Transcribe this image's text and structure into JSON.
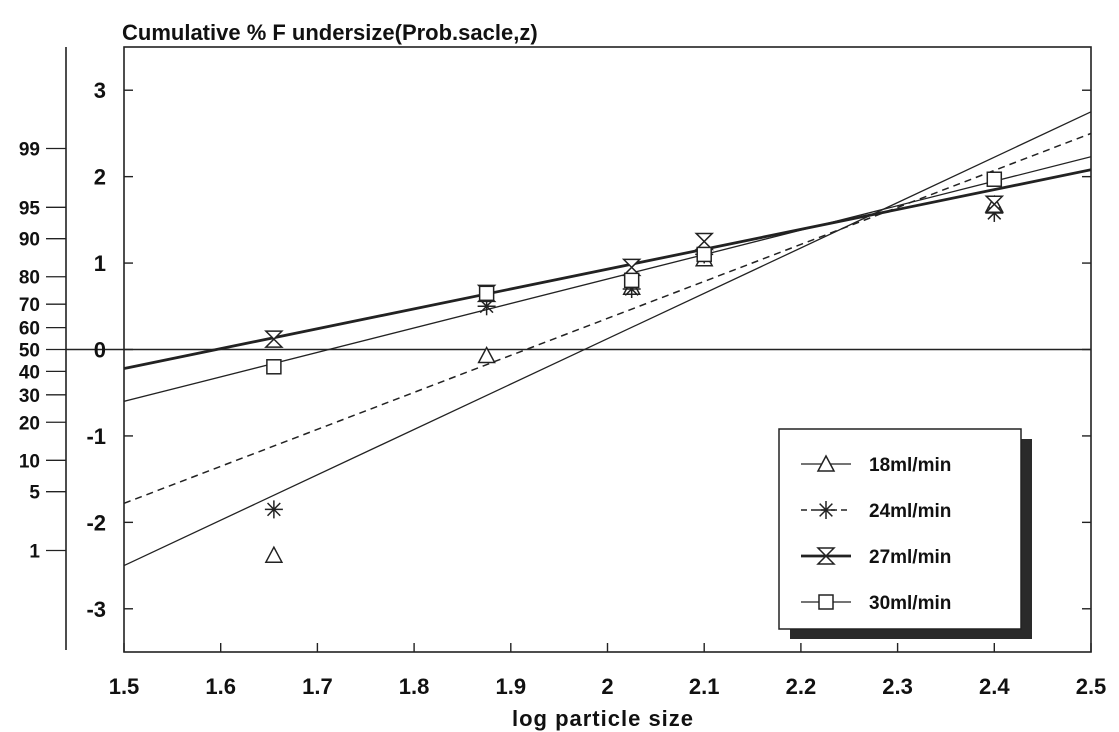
{
  "chart_data": {
    "type": "scatter",
    "title": "Cumulative % F undersize(Prob.sacle,z)",
    "xlabel": "log particle size",
    "ylabel": "",
    "xlim": [
      1.5,
      2.5
    ],
    "ylim": [
      -3.5,
      3.5
    ],
    "x_ticks": [
      "1.5",
      "1.6",
      "1.7",
      "1.8",
      "1.9",
      "2",
      "2.1",
      "2.2",
      "2.3",
      "2.4",
      "2.5"
    ],
    "x_tick_values": [
      1.5,
      1.6,
      1.7,
      1.8,
      1.9,
      2.0,
      2.1,
      2.2,
      2.3,
      2.4,
      2.5
    ],
    "y_ticks": [
      "-3",
      "-2",
      "-1",
      "0",
      "1",
      "2",
      "3"
    ],
    "y_tick_values": [
      -3,
      -2,
      -1,
      0,
      1,
      2,
      3
    ],
    "percent_axis": {
      "labels": [
        "1",
        "5",
        "10",
        "20",
        "30",
        "40",
        "50",
        "60",
        "70",
        "80",
        "90",
        "95",
        "99"
      ],
      "z_values": [
        -2.326,
        -1.645,
        -1.282,
        -0.842,
        -0.524,
        -0.253,
        0.0,
        0.253,
        0.524,
        0.842,
        1.282,
        1.645,
        2.326
      ]
    },
    "grid": false,
    "reference_line_y": 0,
    "legend_position": "bottom-right",
    "series": [
      {
        "name": "18ml/min",
        "marker": "triangle",
        "line_style": "solid-thin",
        "points": [
          [
            1.655,
            -2.38
          ],
          [
            1.875,
            -0.07
          ],
          [
            2.025,
            0.72
          ],
          [
            2.1,
            1.05
          ],
          [
            2.4,
            1.68
          ]
        ],
        "fit_line": [
          [
            1.5,
            -2.5
          ],
          [
            2.5,
            2.75
          ]
        ]
      },
      {
        "name": "24ml/min",
        "marker": "asterisk",
        "line_style": "dashed",
        "points": [
          [
            1.655,
            -1.85
          ],
          [
            1.875,
            0.5
          ],
          [
            2.025,
            0.7
          ],
          [
            2.1,
            1.1
          ],
          [
            2.4,
            1.58
          ]
        ],
        "fit_line": [
          [
            1.5,
            -1.78
          ],
          [
            2.5,
            2.5
          ]
        ]
      },
      {
        "name": "27ml/min",
        "marker": "hourglass",
        "line_style": "solid-thick",
        "points": [
          [
            1.655,
            0.12
          ],
          [
            1.875,
            0.65
          ],
          [
            2.025,
            0.95
          ],
          [
            2.1,
            1.25
          ],
          [
            2.4,
            1.68
          ]
        ],
        "fit_line": [
          [
            1.5,
            -0.22
          ],
          [
            2.5,
            2.08
          ]
        ]
      },
      {
        "name": "30ml/min",
        "marker": "square",
        "line_style": "solid-thin",
        "points": [
          [
            1.655,
            -0.2
          ],
          [
            1.875,
            0.65
          ],
          [
            2.025,
            0.8
          ],
          [
            2.1,
            1.1
          ],
          [
            2.4,
            1.97
          ]
        ],
        "fit_line": [
          [
            1.5,
            -0.6
          ],
          [
            2.5,
            2.23
          ]
        ]
      }
    ]
  }
}
